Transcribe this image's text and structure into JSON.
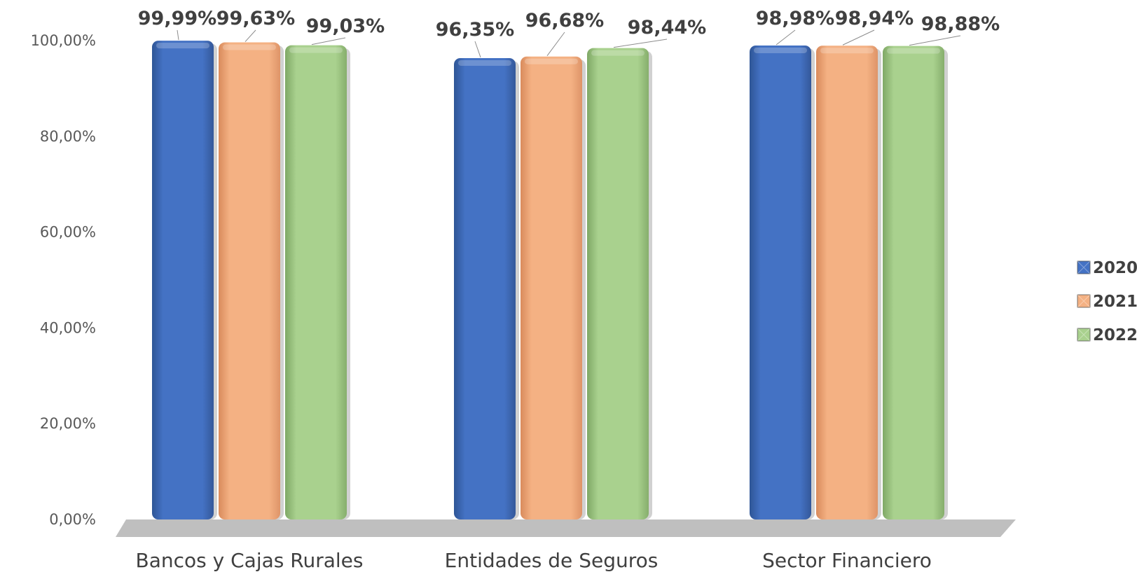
{
  "chart_data": {
    "type": "bar",
    "title": "",
    "xlabel": "",
    "ylabel": "",
    "categories": [
      "Bancos y Cajas Rurales",
      "Entidades de Seguros",
      "Sector Financiero"
    ],
    "series": [
      {
        "name": "2020",
        "color": "#4472C4",
        "values": [
          99.99,
          96.35,
          98.98
        ],
        "labels": [
          "99,99%",
          "96,35%",
          "98,98%"
        ]
      },
      {
        "name": "2021",
        "color": "#F4B183",
        "values": [
          99.63,
          96.68,
          98.94
        ],
        "labels": [
          "99,63%",
          "96,68%",
          "98,94%"
        ]
      },
      {
        "name": "2022",
        "color": "#A9D18E",
        "values": [
          99.03,
          98.44,
          98.88
        ],
        "labels": [
          "99,03%",
          "98,44%",
          "98,88%"
        ]
      }
    ],
    "ylim": [
      0,
      100
    ],
    "yticks": [
      0,
      20,
      40,
      60,
      80,
      100
    ],
    "ytick_labels": [
      "0,00%",
      "20,00%",
      "40,00%",
      "60,00%",
      "80,00%",
      "100,00%"
    ],
    "grid": false,
    "legend_position": "right",
    "floor_color": "#BFBFBF"
  }
}
